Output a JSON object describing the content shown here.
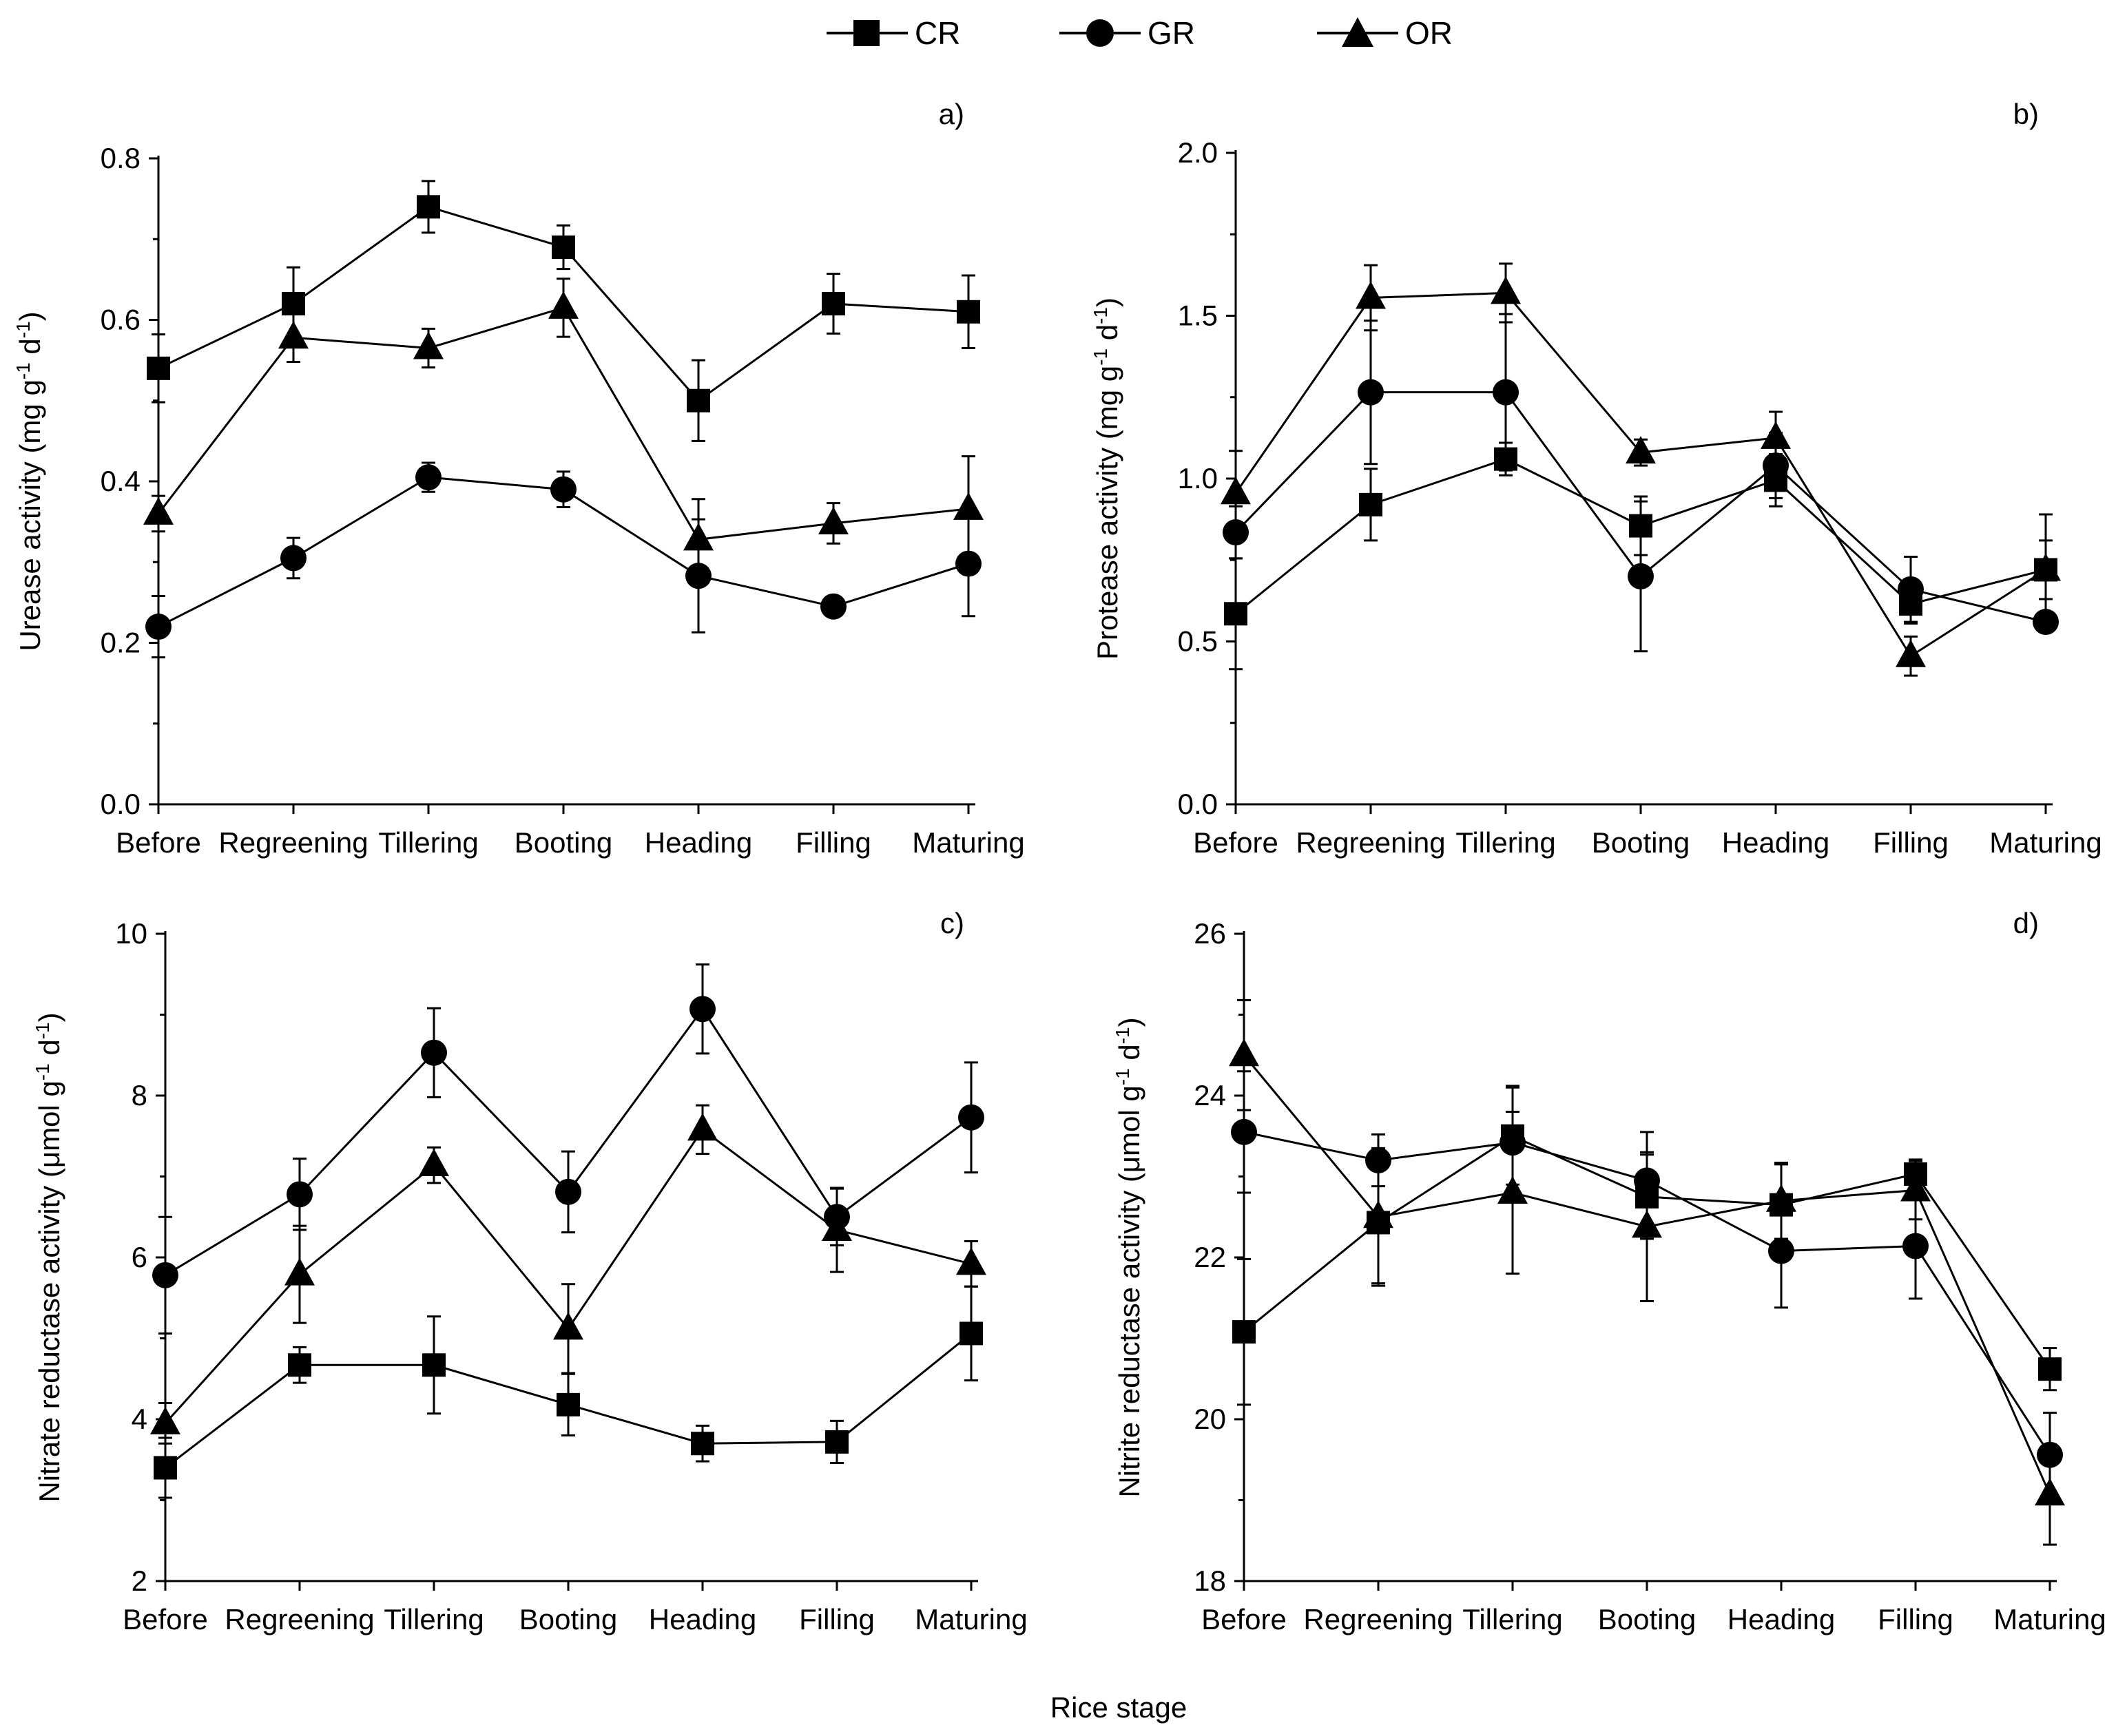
{
  "figure": {
    "xlabel": "Rice stage",
    "legend": [
      "CR",
      "GR",
      "OR"
    ]
  },
  "chart_data": [
    {
      "type": "line",
      "panel": "a)",
      "title": "",
      "xlabel": "",
      "ylabel_parts": [
        "Urease activity (mg g",
        "-1",
        " d",
        "-1",
        ")"
      ],
      "categories": [
        "Before",
        "Regreening",
        "Tillering",
        "Booting",
        "Heading",
        "Filling",
        "Maturing"
      ],
      "ylim": [
        0,
        0.8
      ],
      "yticks": [
        0.0,
        0.2,
        0.4,
        0.6,
        0.8
      ],
      "ytick_labels": [
        "0.0",
        "0.2",
        "0.4",
        "0.6",
        "0.8"
      ],
      "series": [
        {
          "name": "CR",
          "marker": "square",
          "values": [
            0.54,
            0.62,
            0.74,
            0.69,
            0.5,
            0.62,
            0.61
          ],
          "errors": [
            0.042,
            0.045,
            0.032,
            0.027,
            0.05,
            0.037,
            0.045
          ]
        },
        {
          "name": "GR",
          "marker": "circle",
          "values": [
            0.22,
            0.305,
            0.405,
            0.39,
            0.283,
            0.245,
            0.298
          ],
          "errors": [
            0.038,
            0.025,
            0.018,
            0.022,
            0.07,
            0.005,
            0.065
          ]
        },
        {
          "name": "OR",
          "marker": "triangle",
          "values": [
            0.36,
            0.578,
            0.565,
            0.615,
            0.328,
            0.348,
            0.366
          ],
          "errors": [
            0.022,
            0.03,
            0.024,
            0.036,
            0.05,
            0.025,
            0.065
          ]
        }
      ]
    },
    {
      "type": "line",
      "panel": "b)",
      "title": "",
      "xlabel": "",
      "ylabel_parts": [
        "Protease activity (mg g",
        "-1",
        " d",
        "-1",
        ")"
      ],
      "categories": [
        "Before",
        "Regreening",
        "Tillering",
        "Booting",
        "Heading",
        "Filling",
        "Maturing"
      ],
      "ylim": [
        0,
        2.0
      ],
      "yticks": [
        0.0,
        0.5,
        1.0,
        1.5,
        2.0
      ],
      "ytick_labels": [
        "0.0",
        "0.5",
        "1.0",
        "1.5",
        "2.0"
      ],
      "series": [
        {
          "name": "CR",
          "marker": "square",
          "values": [
            0.585,
            0.92,
            1.06,
            0.855,
            0.995,
            0.615,
            0.72
          ],
          "errors": [
            0.17,
            0.11,
            0.05,
            0.09,
            0.08,
            0.06,
            0.17
          ]
        },
        {
          "name": "GR",
          "marker": "circle",
          "values": [
            0.835,
            1.265,
            1.265,
            0.7,
            1.04,
            0.66,
            0.56
          ],
          "errors": [
            0.08,
            0.22,
            0.24,
            0.23,
            0.1,
            0.1,
            0.02
          ]
        },
        {
          "name": "OR",
          "marker": "triangle",
          "values": [
            0.955,
            1.555,
            1.57,
            1.08,
            1.125,
            0.455,
            0.72
          ],
          "errors": [
            0.13,
            0.1,
            0.09,
            0.04,
            0.08,
            0.06,
            0.09
          ]
        }
      ]
    },
    {
      "type": "line",
      "panel": "c)",
      "title": "",
      "xlabel": "",
      "ylabel_parts": [
        "Nitrate reductase activity (μmol g",
        "-1",
        " d",
        "-1",
        ")"
      ],
      "categories": [
        "Before",
        "Regreening",
        "Tillering",
        "Booting",
        "Heading",
        "Filling",
        "Maturing"
      ],
      "ylim": [
        2,
        10
      ],
      "yticks": [
        2,
        4,
        6,
        8,
        10
      ],
      "ytick_labels": [
        "2",
        "4",
        "6",
        "8",
        "10"
      ],
      "series": [
        {
          "name": "CR",
          "marker": "square",
          "values": [
            3.4,
            4.67,
            4.67,
            4.18,
            3.7,
            3.72,
            5.06
          ],
          "errors": [
            0.37,
            0.22,
            0.6,
            0.38,
            0.22,
            0.26,
            0.58
          ]
        },
        {
          "name": "GR",
          "marker": "circle",
          "values": [
            5.78,
            6.78,
            8.53,
            6.81,
            9.07,
            6.5,
            7.73
          ],
          "errors": [
            0.72,
            0.44,
            0.55,
            0.5,
            0.55,
            0.35,
            0.68
          ]
        },
        {
          "name": "OR",
          "marker": "triangle",
          "values": [
            3.95,
            5.79,
            7.14,
            5.12,
            7.58,
            6.34,
            5.92
          ],
          "errors": [
            0.25,
            0.6,
            0.22,
            0.55,
            0.3,
            0.52,
            0.28
          ]
        }
      ]
    },
    {
      "type": "line",
      "panel": "d)",
      "title": "",
      "xlabel": "",
      "ylabel_parts": [
        "Nitrite reductase activity (μmol g",
        "-1",
        " d",
        "-1",
        ")"
      ],
      "categories": [
        "Before",
        "Regreening",
        "Tillering",
        "Booting",
        "Heading",
        "Filling",
        "Maturing"
      ],
      "ylim": [
        18,
        26
      ],
      "yticks": [
        18,
        20,
        22,
        24,
        26
      ],
      "ytick_labels": [
        "18",
        "20",
        "22",
        "24",
        "26"
      ],
      "series": [
        {
          "name": "CR",
          "marker": "square",
          "values": [
            21.08,
            22.43,
            23.5,
            22.75,
            22.65,
            23.03,
            20.62
          ],
          "errors": [
            0.9,
            0.75,
            0.6,
            0.52,
            0.5,
            0.18,
            0.26
          ]
        },
        {
          "name": "GR",
          "marker": "circle",
          "values": [
            23.55,
            23.2,
            23.42,
            22.95,
            22.08,
            22.14,
            19.56
          ],
          "errors": [
            0.75,
            0.32,
            0.7,
            0.6,
            0.7,
            0.65,
            0.52
          ]
        },
        {
          "name": "OR",
          "marker": "triangle",
          "values": [
            24.5,
            22.5,
            22.8,
            22.38,
            22.7,
            22.83,
            19.07
          ],
          "errors": [
            0.68,
            0.85,
            1.0,
            0.92,
            0.47,
            0.36,
            0.62
          ]
        }
      ]
    }
  ]
}
